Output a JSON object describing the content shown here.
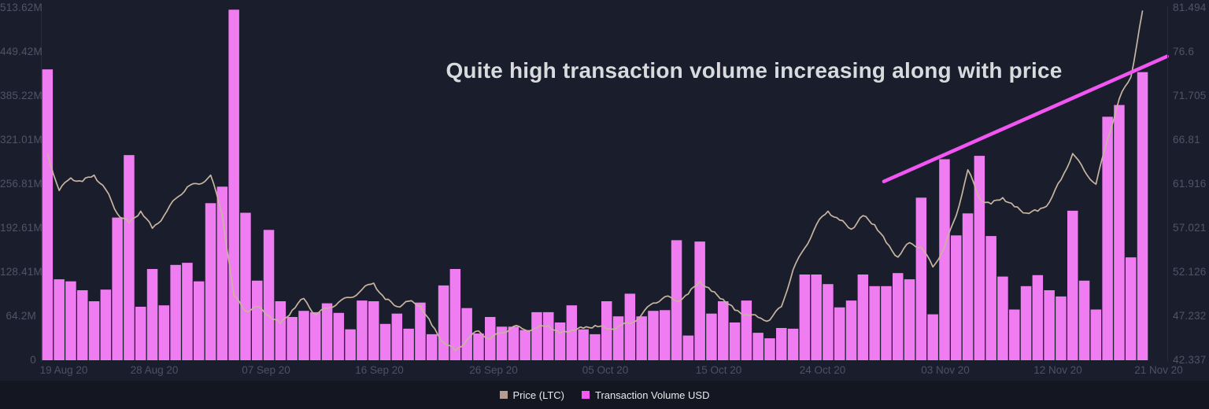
{
  "title": {
    "text": "Quite high transaction volume increasing along with price"
  },
  "legend": {
    "items": [
      {
        "label": "Price (LTC)",
        "color": "#b79a90"
      },
      {
        "label": "Transaction Volume USD",
        "color": "#f458f5"
      }
    ]
  },
  "axes": {
    "left_ticks": [
      "513.62M",
      "449.42M",
      "385.22M",
      "321.01M",
      "256.81M",
      "192.61M",
      "128.41M",
      "64.2M",
      "0"
    ],
    "right_ticks": [
      "81.494",
      "76.6",
      "71.705",
      "66.81",
      "61.916",
      "57.021",
      "52.126",
      "47.232",
      "42.337"
    ],
    "x_ticks": [
      "19 Aug 20",
      "28 Aug 20",
      "07 Sep 20",
      "16 Sep 20",
      "26 Sep 20",
      "05 Oct 20",
      "15 Oct 20",
      "24 Oct 20",
      "03 Nov 20",
      "12 Nov 20",
      "21 Nov 20"
    ]
  },
  "chart_data": {
    "type": "bar",
    "title": "Quite high transaction volume increasing along with price",
    "x_start_date": "19 Aug 20",
    "x_end_date": "21 Nov 20",
    "x_tick_labels": [
      "19 Aug 20",
      "28 Aug 20",
      "07 Sep 20",
      "16 Sep 20",
      "26 Sep 20",
      "05 Oct 20",
      "15 Oct 20",
      "24 Oct 20",
      "03 Nov 20",
      "12 Nov 20",
      "21 Nov 20"
    ],
    "left_axis": {
      "label": "Transaction Volume USD",
      "unit": "USD millions",
      "min": 0,
      "max": 513.62
    },
    "right_axis": {
      "label": "Price (LTC)",
      "unit": "USD",
      "min": 42.337,
      "max": 81.494
    },
    "grid": false,
    "legend_position": "bottom-center",
    "series": [
      {
        "name": "Transaction Volume USD",
        "type": "bar",
        "unit": "M USD",
        "color": "#ef7cf1",
        "values": [
          424,
          118,
          115,
          102,
          86,
          103,
          208,
          299,
          78,
          133,
          80,
          139,
          142,
          115,
          229,
          253,
          511,
          215,
          116,
          190,
          86,
          63,
          72,
          70,
          83,
          69,
          45,
          87,
          86,
          53,
          68,
          46,
          84,
          38,
          109,
          133,
          76,
          39,
          63,
          49,
          49,
          44,
          70,
          70,
          55,
          80,
          45,
          38,
          86,
          64,
          97,
          64,
          72,
          73,
          175,
          36,
          173,
          68,
          86,
          55,
          87,
          40,
          32,
          47,
          46,
          125,
          125,
          111,
          77,
          87,
          125,
          108,
          108,
          127,
          118,
          237,
          67,
          293,
          182,
          214,
          298,
          181,
          122,
          74,
          108,
          124,
          102,
          93,
          218,
          116,
          74,
          355,
          372,
          150,
          420
        ]
      },
      {
        "name": "Price (LTC)",
        "type": "line",
        "unit": "USD",
        "color": "#c7b5a0",
        "values": [
          65.3,
          61.2,
          62.6,
          62.2,
          62.9,
          61.3,
          58.6,
          57.6,
          58.9,
          57.0,
          58.4,
          60.3,
          61.6,
          61.9,
          62.9,
          58.5,
          49.5,
          47.8,
          48.3,
          47.3,
          46.4,
          47.9,
          49.2,
          47.4,
          48.1,
          48.8,
          49.3,
          50.2,
          50.9,
          49.1,
          48.3,
          48.9,
          48.4,
          46.2,
          44.3,
          43.4,
          44.6,
          45.6,
          44.7,
          45.4,
          46.1,
          45.7,
          45.9,
          46.2,
          45.3,
          45.7,
          45.9,
          46.2,
          45.8,
          46.1,
          46.4,
          47.4,
          48.7,
          49.4,
          48.9,
          49.7,
          51.1,
          50.0,
          49.1,
          47.9,
          47.4,
          47.1,
          46.8,
          48.3,
          52.4,
          54.8,
          57.4,
          58.9,
          57.9,
          56.9,
          58.4,
          57.4,
          55.4,
          53.8,
          55.4,
          54.9,
          52.7,
          54.9,
          58.4,
          63.5,
          60.3,
          59.7,
          60.4,
          59.4,
          58.7,
          58.9,
          59.9,
          62.4,
          65.3,
          63.4,
          61.9,
          66.9,
          71.4,
          73.8,
          81.2
        ]
      }
    ],
    "annotation": {
      "type": "trendline",
      "color": "#f156f3",
      "from_day": 72.3,
      "from_price": 62.2,
      "to_day": 96.6,
      "to_price": 76.1
    }
  },
  "colors": {
    "background": "#1a1d2c",
    "legend_strip": "#141722",
    "axis_text": "#4e5568",
    "title_text": "#d8dadd",
    "plot_border": "#272b3c"
  }
}
